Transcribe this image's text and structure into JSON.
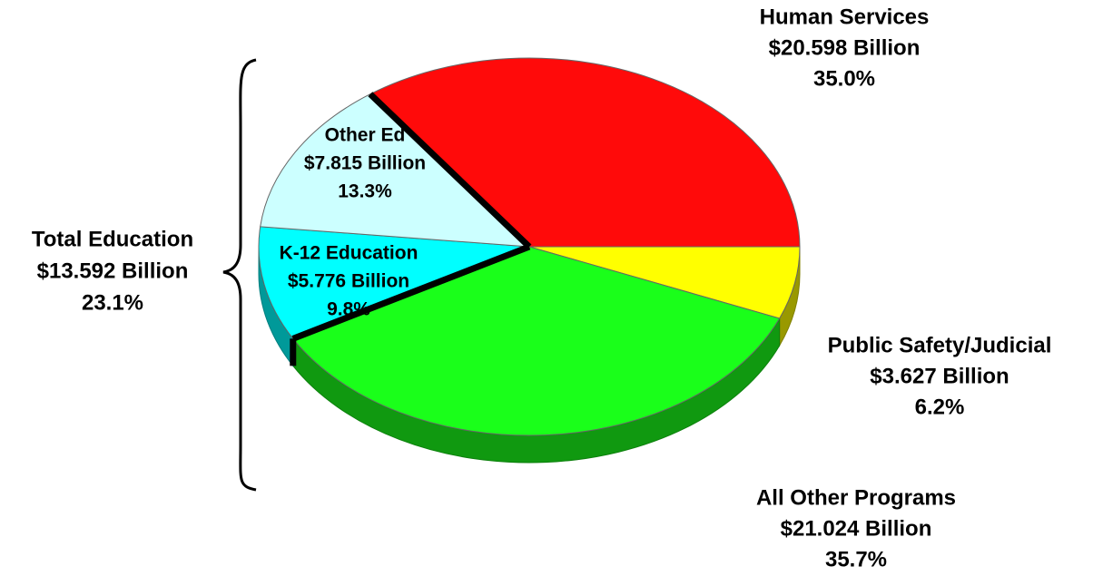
{
  "chart_data": {
    "type": "pie",
    "categories": [
      "Human Services",
      "Public Safety/Judicial",
      "All Other Programs",
      "K-12 Education",
      "Other Ed"
    ],
    "values": [
      35.0,
      6.2,
      35.7,
      9.8,
      13.3
    ],
    "value_labels": [
      "35.0%",
      "6.2%",
      "35.7%",
      "9.8%",
      "13.3%"
    ],
    "amounts": [
      20.598,
      3.627,
      21.024,
      5.776,
      7.815
    ],
    "amount_labels": [
      "$20.598 Billion",
      "$3.627 Billion",
      "$21.024 Billion",
      "$5.776 Billion",
      "$7.815 Billion"
    ],
    "colors": [
      "#ff0a0a",
      "#ffff00",
      "#1aff1a",
      "#00ffff",
      "#ccffff"
    ],
    "annotation": {
      "text": "Total Education",
      "amount": 13.592,
      "amount_label": "$13.592 Billion",
      "value": 23.1,
      "value_label": "23.1%"
    }
  }
}
